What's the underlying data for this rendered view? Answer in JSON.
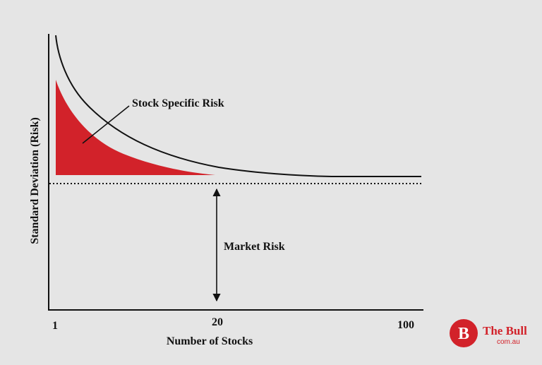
{
  "colors": {
    "background": "#e5e5e5",
    "ink": "#111111",
    "risk_fill": "#d2222a",
    "logo_red": "#d2222a"
  },
  "chart_data": {
    "type": "line",
    "xlabel": "Number of Stocks",
    "ylabel": "Standard Deviation (Risk)",
    "x_ticks": [
      "1",
      "20",
      "100"
    ],
    "grid": false,
    "series": [
      {
        "curve": "total-risk",
        "shape": "decaying curve approaching market-risk level"
      },
      {
        "curve": "market-risk",
        "style": "dotted horizontal line"
      }
    ],
    "annotations": [
      {
        "label": "Stock Specific Risk",
        "points_to": "red shaded area between curve and market-risk level"
      },
      {
        "label": "Market Risk",
        "points_to": "vertical double-headed arrow from x-axis to market-risk level"
      }
    ]
  },
  "logo": {
    "monogram": "B",
    "name": "The Bull",
    "domain": "com.au"
  }
}
